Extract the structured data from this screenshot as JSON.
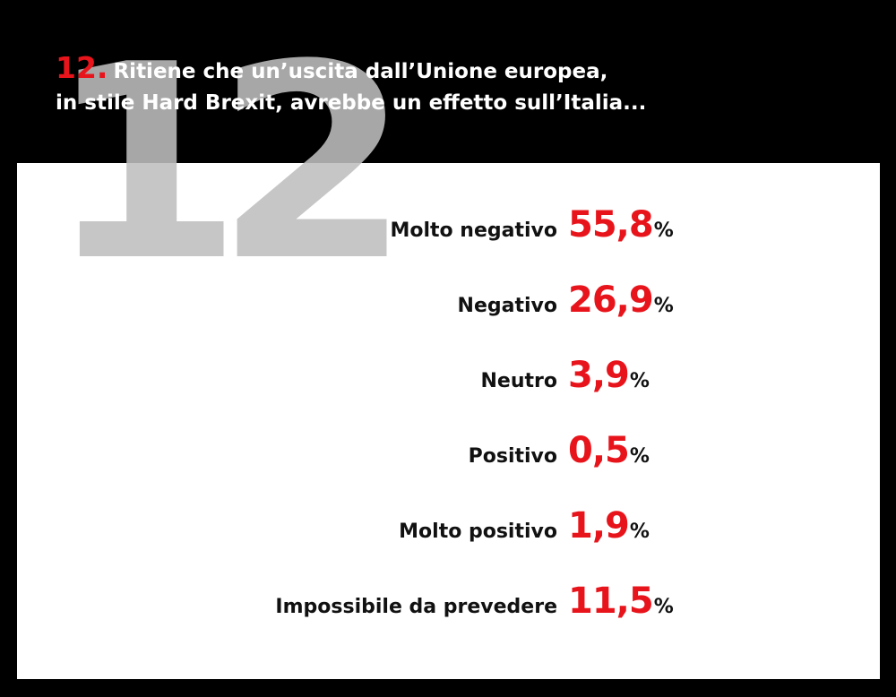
{
  "header": {
    "number": "12.",
    "big_number": "12",
    "question_line1": "Ritiene che un’uscita dall’Unione europea,",
    "question_line2": "in stile Hard Brexit, avrebbe un effetto sull’Italia..."
  },
  "colors": {
    "background": "#000000",
    "panel": "#ffffff",
    "accent": "#e8141b",
    "watermark": "#bebebe"
  },
  "chart_data": {
    "type": "table",
    "title": "Ritiene che un’uscita dall’Unione europea, in stile Hard Brexit, avrebbe un effetto sull’Italia...",
    "categories": [
      "Molto negativo",
      "Negativo",
      "Neutro",
      "Positivo",
      "Molto positivo",
      "Impossibile da prevedere"
    ],
    "values": [
      55.8,
      26.9,
      3.9,
      0.5,
      1.9,
      11.5
    ],
    "display_values": [
      "55,8",
      "26,9",
      "3,9",
      "0,5",
      "1,9",
      "11,5"
    ],
    "unit": "%"
  }
}
